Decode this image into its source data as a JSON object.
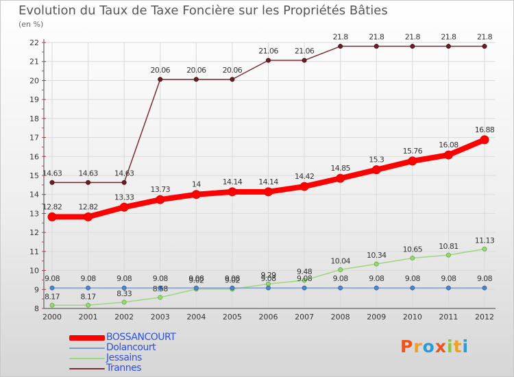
{
  "chart_data": {
    "type": "line",
    "title": "Evolution du Taux de Taxe Foncière sur les Propriétés Bâties",
    "unit_label": "(en %)",
    "x": [
      "2000",
      "2001",
      "2002",
      "2003",
      "2004",
      "2005",
      "2006",
      "2007",
      "2008",
      "2009",
      "2010",
      "2011",
      "2012"
    ],
    "ylim": [
      8,
      22
    ],
    "yticks": [
      "8",
      "9",
      "10",
      "11",
      "12",
      "13",
      "14",
      "15",
      "16",
      "17",
      "18",
      "19",
      "20",
      "21",
      "22"
    ],
    "series": [
      {
        "name": "BOSSANCOURT",
        "color": "#ff0000",
        "values": [
          12.82,
          12.82,
          13.33,
          13.73,
          14,
          14.14,
          14.14,
          14.42,
          14.85,
          15.3,
          15.76,
          16.08,
          16.88
        ],
        "labels": [
          "12.82",
          "12.82",
          "13.33",
          "13.73",
          "14",
          "14.14",
          "14.14",
          "14.42",
          "14.85",
          "15.3",
          "15.76",
          "16.08",
          "16.88"
        ]
      },
      {
        "name": "Dolancourt",
        "color": "#7a9cc8",
        "values": [
          9.08,
          9.08,
          9.08,
          9.08,
          9.08,
          9.08,
          9.08,
          9.08,
          9.08,
          9.08,
          9.08,
          9.08,
          9.08
        ],
        "labels": [
          "9.08",
          "9.08",
          "9.08",
          "9.08",
          "9.08",
          "9.08",
          "9.08",
          "9.08",
          "9.08",
          "9.08",
          "9.08",
          "9.08",
          "9.08"
        ]
      },
      {
        "name": "Jessains",
        "color": "#9ad77a",
        "values": [
          8.17,
          8.17,
          8.33,
          8.58,
          9.02,
          9.02,
          9.29,
          9.48,
          10.04,
          10.34,
          10.65,
          10.81,
          11.13
        ],
        "labels": [
          "8.17",
          "8.17",
          "8.33",
          "8.58",
          "9.02",
          "9.02",
          "9.29",
          "9.48",
          "10.04",
          "10.34",
          "10.65",
          "10.81",
          "11.13"
        ]
      },
      {
        "name": "Trannes",
        "color": "#7a2a33",
        "values": [
          14.63,
          14.63,
          14.63,
          20.06,
          20.06,
          20.06,
          21.06,
          21.06,
          21.8,
          21.8,
          21.8,
          21.8,
          21.8
        ],
        "labels": [
          "14.63",
          "14.63",
          "14.63",
          "20.06",
          "20.06",
          "20.06",
          "21.06",
          "21.06",
          "21.8",
          "21.8",
          "21.8",
          "21.8",
          "21.8"
        ]
      }
    ]
  },
  "brand": {
    "letters": [
      "P",
      "r",
      "o",
      "x",
      "i",
      "t",
      "i"
    ],
    "colors": [
      "#e8561e",
      "#f0a020",
      "#2a9ad8",
      "#e8561e",
      "#8cc63f",
      "#f0a020",
      "#2a9ad8"
    ]
  }
}
